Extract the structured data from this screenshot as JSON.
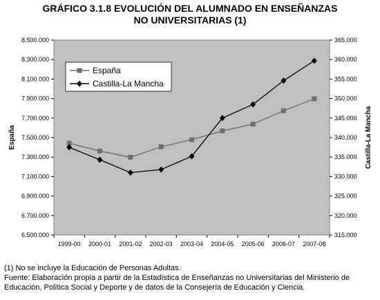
{
  "title_line1": "GRÁFICO 3.1.8 EVOLUCIÓN DEL ALUMNADO EN ENSEÑANZAS",
  "title_line2": "NO UNIVERSITARIAS (1)",
  "note": "(1) No se incluye la Educación de Personas Adultas.",
  "source_line1": "Fuente: Elaboración propia a partir de la Estadística de Enseñanzas no Universitarias del Ministerio de",
  "source_line2": "Educación, Política Social y Deporte y de datos de la Consejería de Educación y Ciencia.",
  "chart_data": {
    "type": "line",
    "categories": [
      "1999-00",
      "2000-01",
      "2001-02",
      "2002-03",
      "2003-04",
      "2004-05",
      "2005-06",
      "2006-07",
      "2007-08"
    ],
    "series": [
      {
        "name": "España",
        "axis": "left",
        "color": "#6e6e6e",
        "marker": "square",
        "values": [
          7442000,
          7362000,
          7298000,
          7405000,
          7478000,
          7568000,
          7638000,
          7775000,
          7898000
        ]
      },
      {
        "name": "Castilla-La Mancha",
        "axis": "right",
        "color": "#000000",
        "marker": "diamond",
        "values": [
          337500,
          334300,
          331000,
          331800,
          335200,
          345000,
          348500,
          354600,
          359700
        ]
      }
    ],
    "ylabel_left": "España",
    "ylabel_right": "Castilla-La Mancha",
    "ylim_left": [
      6500000,
      8500000
    ],
    "ylim_right": [
      315000,
      365000
    ],
    "yticks_left": [
      "6.500.000",
      "6.700.000",
      "6.900.000",
      "7.100.000",
      "7.300.000",
      "7.500.000",
      "7.700.000",
      "7.900.000",
      "8.100.000",
      "8.300.000",
      "8.500.000"
    ],
    "yticks_right": [
      "315.000",
      "320.000",
      "325.000",
      "330.000",
      "335.000",
      "340.000",
      "345.000",
      "350.000",
      "355.000",
      "360.000",
      "365.000"
    ],
    "plot_background": "#c0c0c0",
    "grid": false,
    "legend_position": "top-left"
  }
}
